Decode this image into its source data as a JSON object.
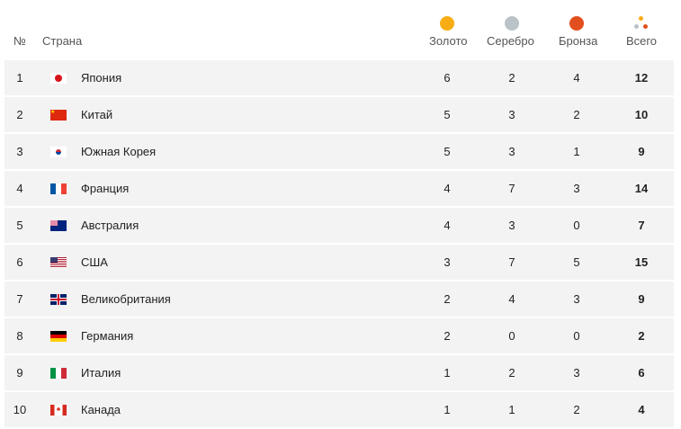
{
  "header": {
    "num": "№",
    "country": "Страна",
    "gold": "Золото",
    "silver": "Серебро",
    "bronze": "Бронза",
    "total": "Всего"
  },
  "colors": {
    "gold": "#f8ad14",
    "silver": "#b9c3c8",
    "bronze": "#e24f1e",
    "row_bg": "#f3f3f3"
  },
  "rows": [
    {
      "rank": "1",
      "flag": "japan",
      "country": "Япония",
      "gold": "6",
      "silver": "2",
      "bronze": "4",
      "total": "12"
    },
    {
      "rank": "2",
      "flag": "china",
      "country": "Китай",
      "gold": "5",
      "silver": "3",
      "bronze": "2",
      "total": "10"
    },
    {
      "rank": "3",
      "flag": "south-korea",
      "country": "Южная Корея",
      "gold": "5",
      "silver": "3",
      "bronze": "1",
      "total": "9"
    },
    {
      "rank": "4",
      "flag": "france",
      "country": "Франция",
      "gold": "4",
      "silver": "7",
      "bronze": "3",
      "total": "14"
    },
    {
      "rank": "5",
      "flag": "australia",
      "country": "Австралия",
      "gold": "4",
      "silver": "3",
      "bronze": "0",
      "total": "7"
    },
    {
      "rank": "6",
      "flag": "usa",
      "country": "США",
      "gold": "3",
      "silver": "7",
      "bronze": "5",
      "total": "15"
    },
    {
      "rank": "7",
      "flag": "uk",
      "country": "Великобритания",
      "gold": "2",
      "silver": "4",
      "bronze": "3",
      "total": "9"
    },
    {
      "rank": "8",
      "flag": "germany",
      "country": "Германия",
      "gold": "2",
      "silver": "0",
      "bronze": "0",
      "total": "2"
    },
    {
      "rank": "9",
      "flag": "italy",
      "country": "Италия",
      "gold": "1",
      "silver": "2",
      "bronze": "3",
      "total": "6"
    },
    {
      "rank": "10",
      "flag": "canada",
      "country": "Канада",
      "gold": "1",
      "silver": "1",
      "bronze": "2",
      "total": "4"
    }
  ]
}
